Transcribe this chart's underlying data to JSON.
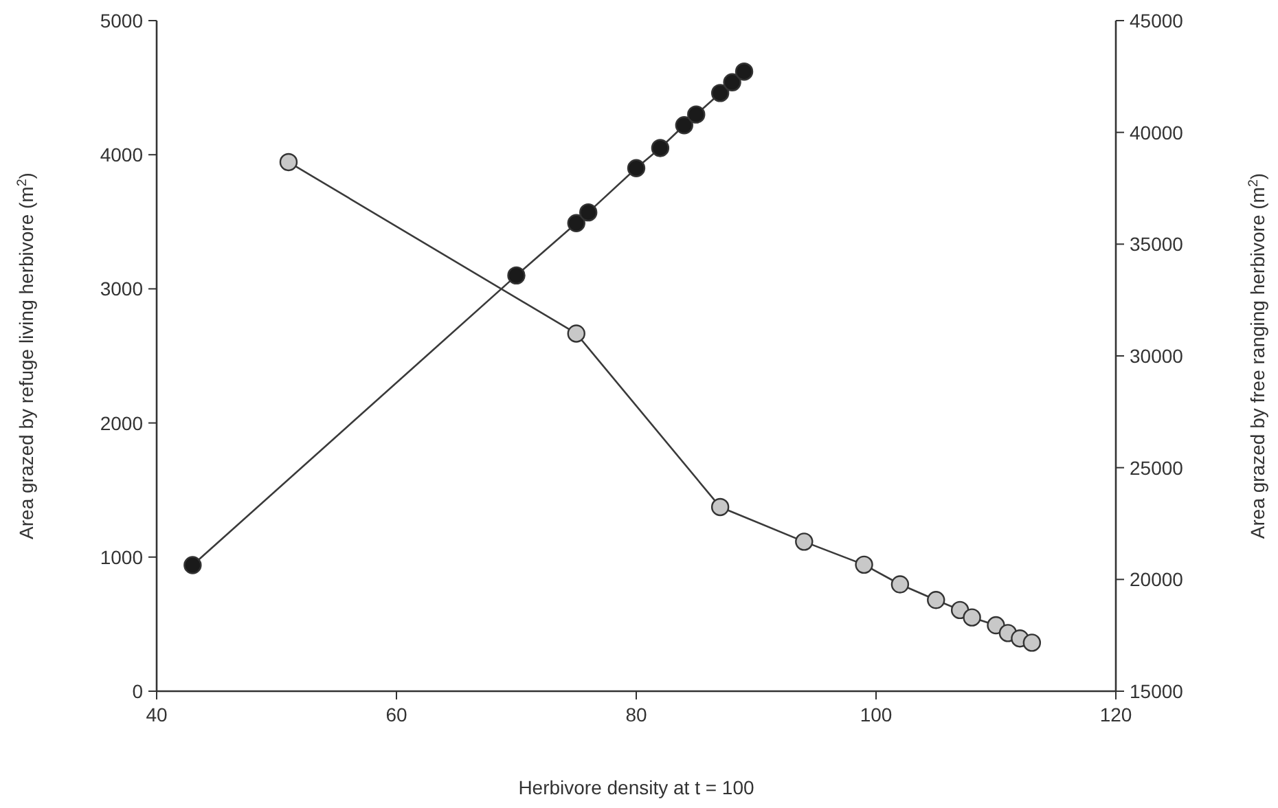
{
  "chart_data": {
    "type": "line",
    "xlabel": "Herbivore density at t = 100",
    "ylabel": "Area grazed by refuge living herbivore (m$^{2}$)",
    "y2label": "Area grazed by free ranging herbivore (m$^{2}$)",
    "xlim": [
      40,
      120
    ],
    "xticks": [
      40,
      60,
      80,
      100,
      120
    ],
    "ylim": [
      0,
      5000
    ],
    "yticks": [
      0,
      1000,
      2000,
      3000,
      4000,
      5000
    ],
    "y2lim": [
      15000,
      45000
    ],
    "y2ticks": [
      15000,
      20000,
      25000,
      30000,
      35000,
      40000,
      45000
    ],
    "grid": false,
    "marker": "circle",
    "line_style": "solid",
    "series": [
      {
        "color": "#1a1a1a",
        "x": [
          43,
          70,
          75,
          76,
          80,
          82,
          84,
          85,
          87,
          88,
          89
        ],
        "values": [
          940,
          3100,
          3490,
          3570,
          3900,
          4050,
          4220,
          4300,
          4460,
          4540,
          4620
        ]
      },
      {
        "color": "#c8c8c8",
        "axis": "y2",
        "x": [
          51,
          75,
          87,
          94,
          99,
          102,
          105,
          107,
          108,
          110,
          111,
          112,
          113
        ],
        "values": [
          38670,
          31000,
          23240,
          21690,
          20660,
          19780,
          19080,
          18630,
          18300,
          17950,
          17600,
          17360,
          17170
        ]
      }
    ]
  }
}
